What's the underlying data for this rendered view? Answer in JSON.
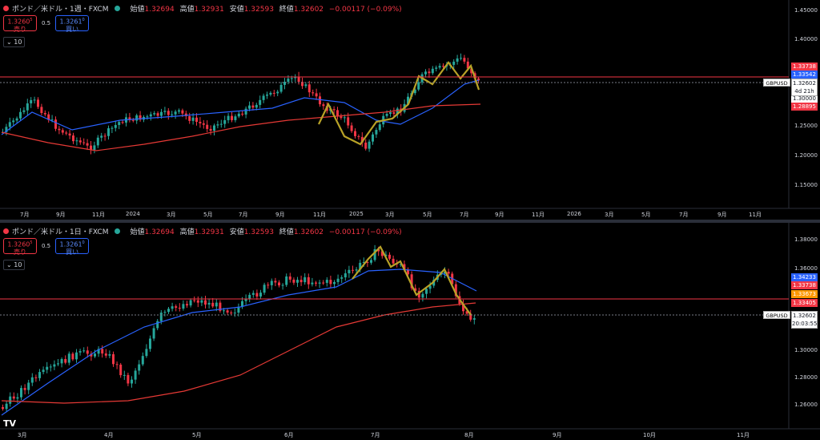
{
  "panes": [
    {
      "id": "weekly",
      "title": "ポンド／米ドル・1週・FXCM",
      "ohlc": {
        "open_label": "始値",
        "open": "1.32694",
        "high_label": "高値",
        "high": "1.32931",
        "low_label": "安値",
        "low": "1.32593",
        "close_label": "終値",
        "close": "1.32602",
        "change": "−0.00117 (−0.09%)"
      },
      "sell": {
        "price": "1.3260",
        "sup": "5",
        "label": "売り"
      },
      "buy": {
        "price": "1.3261",
        "sup": "0",
        "label": "買い"
      },
      "spread": "0.5",
      "volume_toggle": "10",
      "price_axis": [
        "1.45000",
        "1.40000",
        "1.35000",
        "1.30000",
        "1.25000",
        "1.20000",
        "1.15000"
      ],
      "time_axis": [
        "7月",
        "9月",
        "11月",
        "2024",
        "3月",
        "5月",
        "7月",
        "9月",
        "11月",
        "2025",
        "3月",
        "5月",
        "7月",
        "9月",
        "11月",
        "2026",
        "3月",
        "5月",
        "7月",
        "9月",
        "11月"
      ],
      "price_tags": [
        {
          "value": "1.33738",
          "color": "#f23645"
        },
        {
          "value": "1.33542",
          "color": "#2962ff"
        },
        {
          "value": "1.30000",
          "color": "#ffffff"
        },
        {
          "value": "1.28895",
          "color": "#f23645"
        }
      ],
      "symbol_tag": "GBPUSD",
      "last_price": "1.32602",
      "countdown": "4d 21h"
    },
    {
      "id": "daily",
      "title": "ポンド／米ドル・1日・FXCM",
      "ohlc": {
        "open_label": "始値",
        "open": "1.32694",
        "high_label": "高値",
        "high": "1.32931",
        "low_label": "安値",
        "low": "1.32593",
        "close_label": "終値",
        "close": "1.32602",
        "change": "−0.00117 (−0.09%)"
      },
      "sell": {
        "price": "1.3260",
        "sup": "5",
        "label": "売り"
      },
      "buy": {
        "price": "1.3261",
        "sup": "0",
        "label": "買い"
      },
      "spread": "0.5",
      "volume_toggle": "10",
      "price_axis": [
        "1.38000",
        "1.36000",
        "1.30000",
        "1.28000",
        "1.26000"
      ],
      "time_axis": [
        "3月",
        "4月",
        "5月",
        "6月",
        "7月",
        "8月",
        "9月",
        "10月",
        "11月"
      ],
      "price_tags": [
        {
          "value": "1.34233",
          "color": "#2962ff"
        },
        {
          "value": "1.33738",
          "color": "#f23645"
        },
        {
          "value": "1.33673",
          "color": "#ff9800"
        },
        {
          "value": "1.33405",
          "color": "#f23645"
        }
      ],
      "symbol_tag": "GBPUSD",
      "last_price": "1.32602",
      "countdown": "20:03:55"
    }
  ],
  "colors": {
    "up": "#26a69a",
    "down": "#f23645",
    "ma_fast": "#2962ff",
    "ma_slow": "#e53935",
    "zigzag": "#b8a227",
    "bg": "#000000"
  },
  "logo": "TV"
}
